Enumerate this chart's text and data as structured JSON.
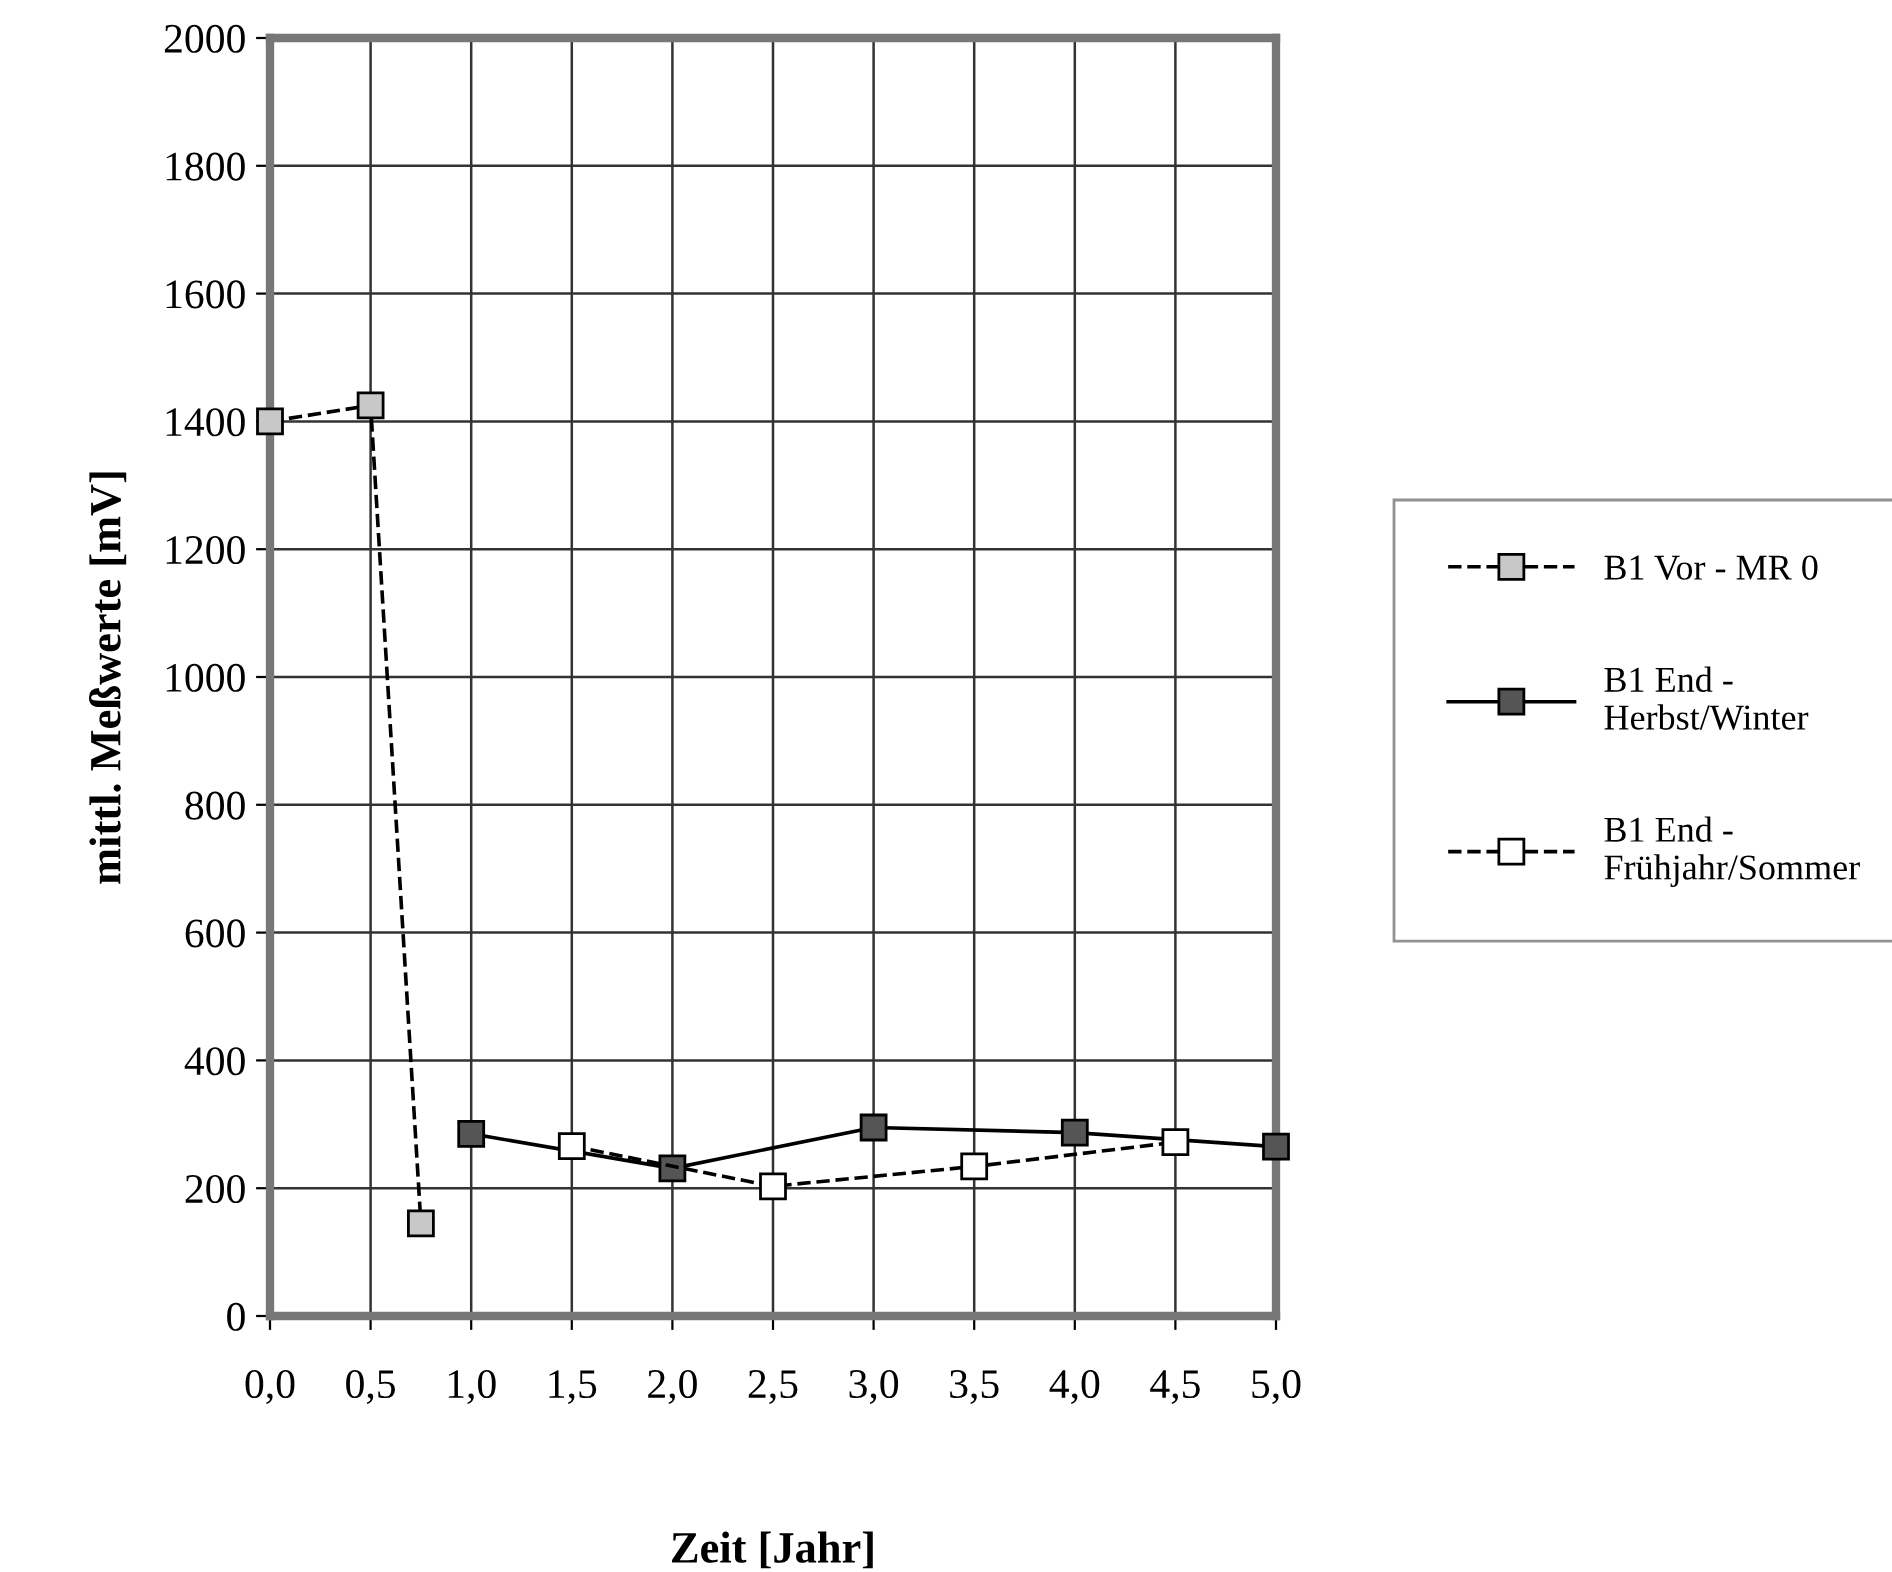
{
  "chart_data": {
    "type": "line",
    "xlabel": "Zeit [Jahr]",
    "ylabel": "mittl. Meßwerte [mV]",
    "xlim": [
      0,
      5
    ],
    "ylim": [
      0,
      2000
    ],
    "xticks": [
      {
        "value": 0,
        "label": "0,0"
      },
      {
        "value": 0.5,
        "label": "0,5"
      },
      {
        "value": 1,
        "label": "1,0"
      },
      {
        "value": 1.5,
        "label": "1,5"
      },
      {
        "value": 2,
        "label": "2,0"
      },
      {
        "value": 2.5,
        "label": "2,5"
      },
      {
        "value": 3,
        "label": "3,0"
      },
      {
        "value": 3.5,
        "label": "3,5"
      },
      {
        "value": 4,
        "label": "4,0"
      },
      {
        "value": 4.5,
        "label": "4,5"
      },
      {
        "value": 5,
        "label": "5,0"
      }
    ],
    "yticks": [
      0,
      200,
      400,
      600,
      800,
      1000,
      1200,
      1400,
      1600,
      1800,
      2000
    ],
    "grid": true,
    "legend": "right",
    "marker": "square",
    "series": [
      {
        "name": "B1 Vor - MR 0",
        "color": "#c8c8c8",
        "line_style": "dashed",
        "x": [
          0,
          0.5,
          0.75
        ],
        "values": [
          1400,
          1425,
          145
        ]
      },
      {
        "name": "B1 End -\nHerbst/Winter",
        "color": "#555555",
        "line_style": "solid",
        "x": [
          1,
          2,
          3,
          4,
          5
        ],
        "values": [
          285,
          231,
          295,
          287,
          265
        ]
      },
      {
        "name": "B1 End -\nFrühjahr/Sommer",
        "color": "#ffffff",
        "line_style": "dashed",
        "x": [
          1.5,
          2.5,
          3.5,
          4.5
        ],
        "values": [
          266,
          203,
          234,
          272
        ]
      }
    ]
  }
}
